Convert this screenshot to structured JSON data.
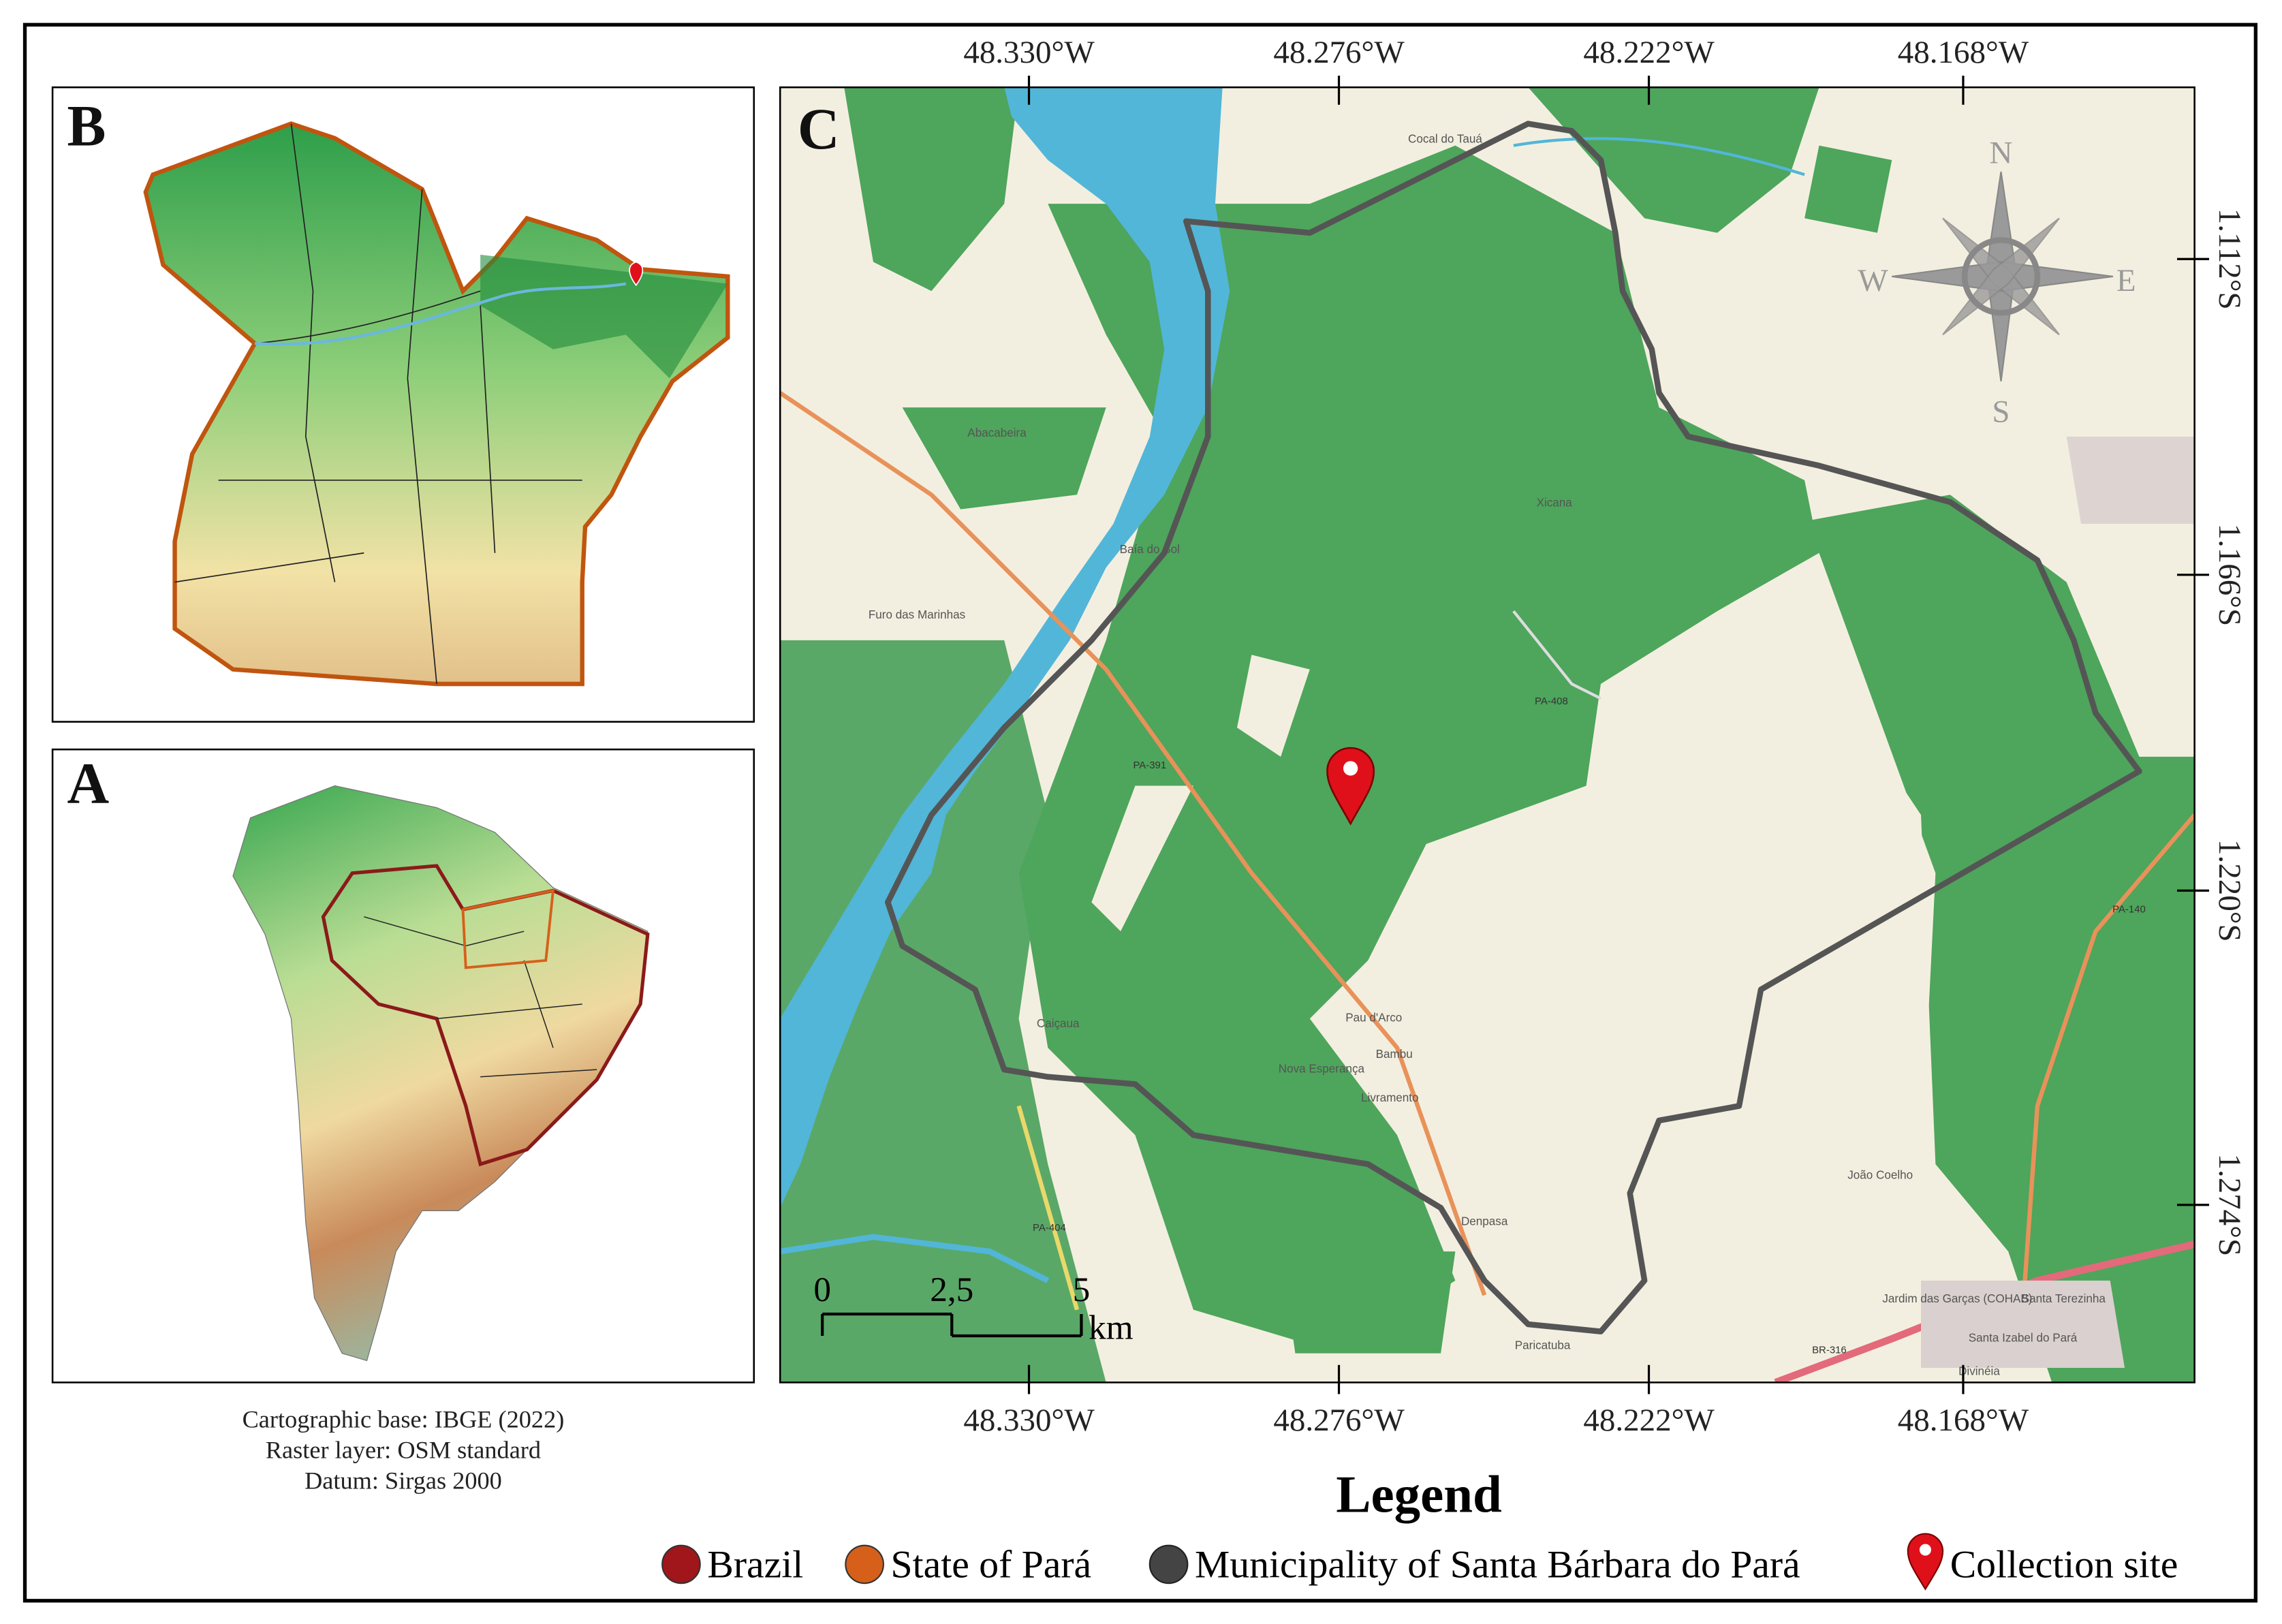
{
  "panels": {
    "b": {
      "label": "B"
    },
    "a": {
      "label": "A"
    },
    "c": {
      "label": "C",
      "place_names": [
        "Abacabeira",
        "Furo das Marinhas",
        "Baía do Sol",
        "Xicana",
        "Pau d'Arco",
        "Bambu",
        "Nova Esperança",
        "Livramento",
        "João Coelho",
        "Caiçaua",
        "Paricatuba",
        "Santa Terezinha",
        "Jardim das Garças (COHAB)",
        "Santa Izabel do Pará",
        "Cocal do Tauá",
        "Denpasa",
        "Divinéia"
      ],
      "road_labels": [
        "PA-391",
        "PA-408",
        "PA-404",
        "PA-140",
        "BR-316"
      ]
    }
  },
  "coordinates": {
    "longitude": [
      "48.330°W",
      "48.276°W",
      "48.222°W",
      "48.168°W"
    ],
    "latitude": [
      "1.112°S",
      "1.166°S",
      "1.220°S",
      "1.274°S"
    ]
  },
  "compass": {
    "north": "N",
    "south": "S",
    "west": "W",
    "east": "E"
  },
  "scale_bar": {
    "ticks": [
      "0",
      "2,5",
      "5"
    ],
    "unit": "km"
  },
  "credits": [
    "Cartographic base: IBGE (2022)",
    "Raster layer: OSM standard",
    "Datum: Sirgas 2000"
  ],
  "legend": {
    "title": "Legend",
    "items": [
      "Brazil",
      "State of Pará",
      "Municipality of Santa Bárbara do Pará",
      "Collection site"
    ]
  }
}
